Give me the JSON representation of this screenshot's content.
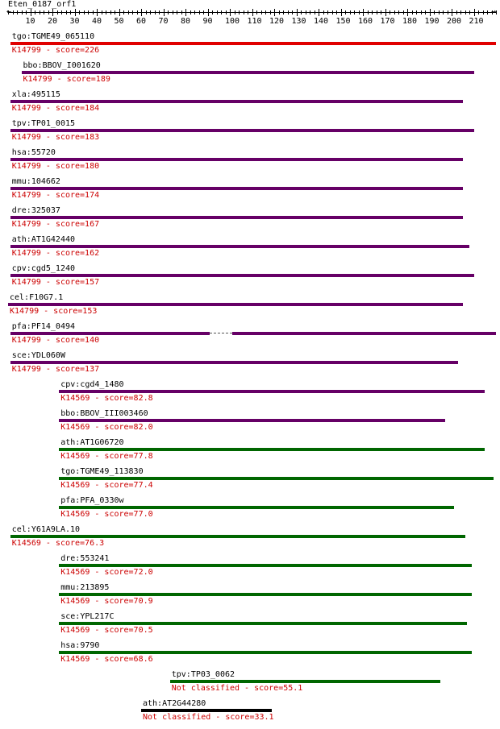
{
  "title": "Eten_0187_orf1",
  "axis": {
    "min": 0,
    "max": 220,
    "major": [
      10,
      20,
      30,
      40,
      50,
      60,
      70,
      80,
      90,
      100,
      110,
      120,
      130,
      140,
      150,
      160,
      170,
      180,
      190,
      200,
      210
    ],
    "minor_step": 2
  },
  "colors": {
    "red": "#e00000",
    "purple": "#660066",
    "green": "#006600",
    "black": "#000000"
  },
  "tracks": [
    {
      "name": "tgo:TGME49_065110",
      "label": "K14799 - score=226",
      "color": "red",
      "segments": [
        [
          1,
          220
        ]
      ]
    },
    {
      "name": "bbo:BBOV_I001620",
      "label": "K14799 - score=189",
      "color": "purple",
      "segments": [
        [
          6,
          210
        ]
      ]
    },
    {
      "name": "xla:495115",
      "label": "K14799 - score=184",
      "color": "purple",
      "segments": [
        [
          1,
          205
        ]
      ]
    },
    {
      "name": "tpv:TP01_0015",
      "label": "K14799 - score=183",
      "color": "purple",
      "segments": [
        [
          1,
          210
        ]
      ]
    },
    {
      "name": "hsa:55720",
      "label": "K14799 - score=180",
      "color": "purple",
      "segments": [
        [
          1,
          205
        ]
      ]
    },
    {
      "name": "mmu:104662",
      "label": "K14799 - score=174",
      "color": "purple",
      "segments": [
        [
          1,
          205
        ]
      ]
    },
    {
      "name": "dre:325037",
      "label": "K14799 - score=167",
      "color": "purple",
      "segments": [
        [
          1,
          205
        ]
      ]
    },
    {
      "name": "ath:AT1G42440",
      "label": "K14799 - score=162",
      "color": "purple",
      "segments": [
        [
          1,
          208
        ]
      ]
    },
    {
      "name": "cpv:cgd5_1240",
      "label": "K14799 - score=157",
      "color": "purple",
      "segments": [
        [
          1,
          210
        ]
      ]
    },
    {
      "name": "cel:F10G7.1",
      "label": "K14799 - score=153",
      "color": "purple",
      "segments": [
        [
          0,
          205
        ]
      ]
    },
    {
      "name": "pfa:PF14_0494",
      "label": "K14799 - score=140",
      "color": "purple",
      "segments": [
        [
          1,
          91
        ],
        [
          101,
          220
        ]
      ]
    },
    {
      "name": "sce:YDL060W",
      "label": "K14799 - score=137",
      "color": "purple",
      "segments": [
        [
          1,
          203
        ]
      ]
    },
    {
      "name": "cpv:cgd4_1480",
      "label": "K14569 - score=82.8",
      "color": "purple",
      "segments": [
        [
          23,
          215
        ]
      ]
    },
    {
      "name": "bbo:BBOV_III003460",
      "label": "K14569 - score=82.0",
      "color": "purple",
      "segments": [
        [
          23,
          197
        ]
      ]
    },
    {
      "name": "ath:AT1G06720",
      "label": "K14569 - score=77.8",
      "color": "green",
      "segments": [
        [
          23,
          215
        ]
      ]
    },
    {
      "name": "tgo:TGME49_113830",
      "label": "K14569 - score=77.4",
      "color": "green",
      "segments": [
        [
          23,
          219
        ]
      ]
    },
    {
      "name": "pfa:PFA_0330w",
      "label": "K14569 - score=77.0",
      "color": "green",
      "segments": [
        [
          23,
          201
        ]
      ]
    },
    {
      "name": "cel:Y61A9LA.10",
      "label": "K14569 - score=76.3",
      "color": "green",
      "segments": [
        [
          1,
          206
        ]
      ]
    },
    {
      "name": "dre:553241",
      "label": "K14569 - score=72.0",
      "color": "green",
      "segments": [
        [
          23,
          209
        ]
      ]
    },
    {
      "name": "mmu:213895",
      "label": "K14569 - score=70.9",
      "color": "green",
      "segments": [
        [
          23,
          209
        ]
      ]
    },
    {
      "name": "sce:YPL217C",
      "label": "K14569 - score=70.5",
      "color": "green",
      "segments": [
        [
          23,
          207
        ]
      ]
    },
    {
      "name": "hsa:9790",
      "label": "K14569 - score=68.6",
      "color": "green",
      "segments": [
        [
          23,
          209
        ]
      ]
    },
    {
      "name": "tpv:TP03_0062",
      "label": "Not classified - score=55.1",
      "color": "green",
      "segments": [
        [
          73,
          195
        ]
      ]
    },
    {
      "name": "ath:AT2G44280",
      "label": "Not classified - score=33.1",
      "color": "black",
      "segments": [
        [
          60,
          119
        ]
      ]
    }
  ]
}
